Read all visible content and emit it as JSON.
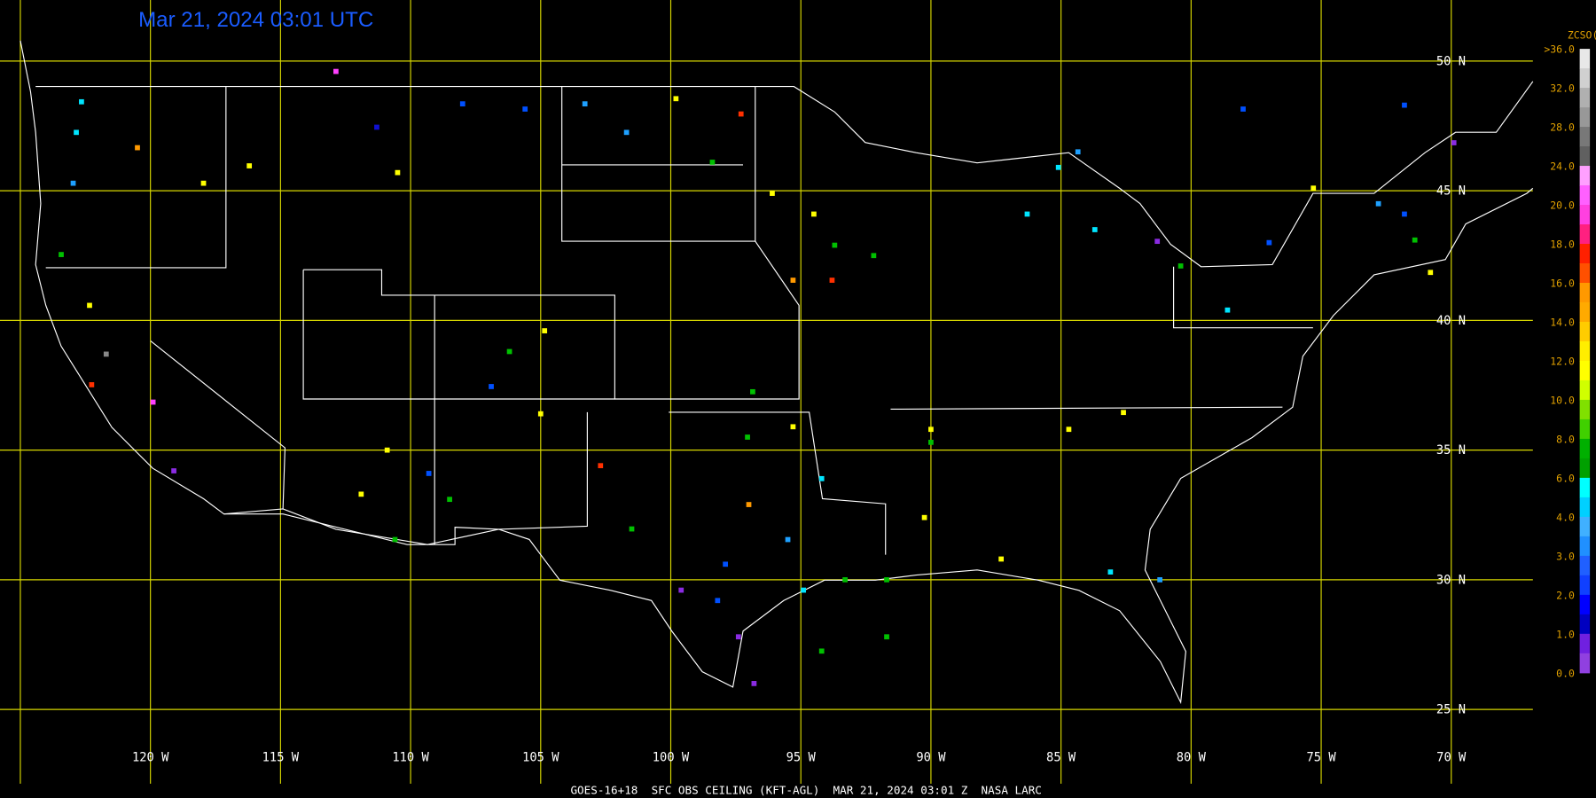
{
  "title": "Mar 21, 2024 03:01 UTC",
  "footer": "GOES-16+18  SFC OBS CEILING (KFT-AGL)  MAR 21, 2024 03:01 Z  NASA LARC",
  "lat_lines": [
    {
      "value": 50,
      "label": "50 N"
    },
    {
      "value": 45,
      "label": "45 N"
    },
    {
      "value": 40,
      "label": "40 N"
    },
    {
      "value": 35,
      "label": "35 N"
    },
    {
      "value": 30,
      "label": "30 N"
    },
    {
      "value": 25,
      "label": "25 N"
    }
  ],
  "lon_lines": [
    {
      "value": -125,
      "label": ""
    },
    {
      "value": -120,
      "label": "120 W"
    },
    {
      "value": -115,
      "label": "115 W"
    },
    {
      "value": -110,
      "label": "110 W"
    },
    {
      "value": -105,
      "label": "105 W"
    },
    {
      "value": -100,
      "label": "100 W"
    },
    {
      "value": -95,
      "label": "95 W"
    },
    {
      "value": -90,
      "label": "90 W"
    },
    {
      "value": -85,
      "label": "85 W"
    },
    {
      "value": -80,
      "label": "80 W"
    },
    {
      "value": -75,
      "label": "75 W"
    },
    {
      "value": -70,
      "label": "70 W"
    }
  ],
  "legend": {
    "title": "ZCSO(Kft)",
    "labels": [
      ">36.0",
      "32.0",
      "28.0",
      "24.0",
      "20.0",
      "18.0",
      "16.0",
      "14.0",
      "12.0",
      "10.0",
      "8.0",
      "6.0",
      "4.0",
      "3.0",
      "2.0",
      "1.0",
      "0.0"
    ],
    "colors": [
      "#e8e8e8",
      "#d0d0d0",
      "#b0b0b0",
      "#989898",
      "#787878",
      "#606060",
      "#ffa0ff",
      "#ff60ff",
      "#ff40e0",
      "#ff2080",
      "#ff2000",
      "#ff5000",
      "#ff9900",
      "#ffaa00",
      "#ffcc00",
      "#ffee00",
      "#ffff00",
      "#d0ff00",
      "#80e000",
      "#40d000",
      "#00b000",
      "#00a000",
      "#00ffff",
      "#00d0ff",
      "#40b0ff",
      "#2090ff",
      "#2060ff",
      "#1040ff",
      "#0000ff",
      "#0000c0",
      "#7020e0",
      "#9040e0"
    ]
  },
  "stations": [
    {
      "lon": -122.65,
      "lat": 48.43,
      "color": "#00e5ff"
    },
    {
      "lon": -122.85,
      "lat": 47.25,
      "color": "#00e5ff"
    },
    {
      "lon": -122.97,
      "lat": 45.29,
      "color": "#1ea0ff"
    },
    {
      "lon": -123.43,
      "lat": 42.54,
      "color": "#00c000"
    },
    {
      "lon": -122.34,
      "lat": 40.58,
      "color": "#ffff00"
    },
    {
      "lon": -122.26,
      "lat": 37.52,
      "color": "#ff3000"
    },
    {
      "lon": -120.5,
      "lat": 46.66,
      "color": "#ff9900"
    },
    {
      "lon": -117.96,
      "lat": 45.29,
      "color": "#ffff00"
    },
    {
      "lon": -116.2,
      "lat": 45.96,
      "color": "#ffff00"
    },
    {
      "lon": -112.87,
      "lat": 49.6,
      "color": "#ff40ff"
    },
    {
      "lon": -111.3,
      "lat": 47.45,
      "color": "#1010d0"
    },
    {
      "lon": -110.5,
      "lat": 45.7,
      "color": "#ffff00"
    },
    {
      "lon": -108.0,
      "lat": 48.35,
      "color": "#0050ff"
    },
    {
      "lon": -105.6,
      "lat": 48.15,
      "color": "#0050ff"
    },
    {
      "lon": -103.3,
      "lat": 48.35,
      "color": "#1ea0ff"
    },
    {
      "lon": -101.7,
      "lat": 47.25,
      "color": "#1ea0ff"
    },
    {
      "lon": -99.8,
      "lat": 48.55,
      "color": "#ffff00"
    },
    {
      "lon": -98.4,
      "lat": 46.1,
      "color": "#00c000"
    },
    {
      "lon": -97.3,
      "lat": 47.96,
      "color": "#ff3000"
    },
    {
      "lon": -96.1,
      "lat": 44.9,
      "color": "#ffff00"
    },
    {
      "lon": -94.5,
      "lat": 44.1,
      "color": "#ffff00"
    },
    {
      "lon": -93.7,
      "lat": 42.9,
      "color": "#00c000"
    },
    {
      "lon": -95.3,
      "lat": 41.55,
      "color": "#ff9900"
    },
    {
      "lon": -93.8,
      "lat": 41.55,
      "color": "#ff3000"
    },
    {
      "lon": -92.2,
      "lat": 42.5,
      "color": "#00c000"
    },
    {
      "lon": -104.85,
      "lat": 39.6,
      "color": "#ffff00"
    },
    {
      "lon": -106.2,
      "lat": 38.8,
      "color": "#00c000"
    },
    {
      "lon": -106.9,
      "lat": 37.45,
      "color": "#0050ff"
    },
    {
      "lon": -110.9,
      "lat": 35.0,
      "color": "#ffff00"
    },
    {
      "lon": -109.3,
      "lat": 34.1,
      "color": "#0050ff"
    },
    {
      "lon": -111.9,
      "lat": 33.3,
      "color": "#ffff00"
    },
    {
      "lon": -110.6,
      "lat": 31.55,
      "color": "#00c000"
    },
    {
      "lon": -119.9,
      "lat": 36.85,
      "color": "#ff40ff"
    },
    {
      "lon": -121.7,
      "lat": 38.7,
      "color": "#888888"
    },
    {
      "lon": -119.1,
      "lat": 34.2,
      "color": "#8a2be2"
    },
    {
      "lon": -102.7,
      "lat": 34.4,
      "color": "#ff3000"
    },
    {
      "lon": -101.5,
      "lat": 31.96,
      "color": "#00c000"
    },
    {
      "lon": -96.85,
      "lat": 37.25,
      "color": "#00c000"
    },
    {
      "lon": -97.05,
      "lat": 35.5,
      "color": "#00c000"
    },
    {
      "lon": -95.3,
      "lat": 35.9,
      "color": "#ffff00"
    },
    {
      "lon": -94.2,
      "lat": 33.9,
      "color": "#00e5ff"
    },
    {
      "lon": -97.0,
      "lat": 32.9,
      "color": "#ff9900"
    },
    {
      "lon": -95.5,
      "lat": 31.55,
      "color": "#1ea0ff"
    },
    {
      "lon": -97.9,
      "lat": 30.6,
      "color": "#0050ff"
    },
    {
      "lon": -94.9,
      "lat": 29.6,
      "color": "#00e5ff"
    },
    {
      "lon": -93.3,
      "lat": 30.0,
      "color": "#00c000"
    },
    {
      "lon": -91.7,
      "lat": 30.0,
      "color": "#00c000"
    },
    {
      "lon": -98.2,
      "lat": 29.2,
      "color": "#0050ff"
    },
    {
      "lon": -97.4,
      "lat": 27.8,
      "color": "#8a2be2"
    },
    {
      "lon": -96.8,
      "lat": 26.0,
      "color": "#8a2be2"
    },
    {
      "lon": -99.6,
      "lat": 29.6,
      "color": "#8a2be2"
    },
    {
      "lon": -94.2,
      "lat": 27.25,
      "color": "#00c000"
    },
    {
      "lon": -91.7,
      "lat": 27.8,
      "color": "#00c000"
    },
    {
      "lon": -90.25,
      "lat": 32.4,
      "color": "#ffff00"
    },
    {
      "lon": -90.0,
      "lat": 35.8,
      "color": "#ffff00"
    },
    {
      "lon": -90.0,
      "lat": 35.3,
      "color": "#00c000"
    },
    {
      "lon": -87.3,
      "lat": 30.8,
      "color": "#ffff00"
    },
    {
      "lon": -84.7,
      "lat": 35.8,
      "color": "#ffff00"
    },
    {
      "lon": -82.6,
      "lat": 36.45,
      "color": "#ffff00"
    },
    {
      "lon": -83.1,
      "lat": 30.3,
      "color": "#00e5ff"
    },
    {
      "lon": -85.1,
      "lat": 45.9,
      "color": "#00e5ff"
    },
    {
      "lon": -84.35,
      "lat": 46.5,
      "color": "#1ea0ff"
    },
    {
      "lon": -86.3,
      "lat": 44.1,
      "color": "#00e5ff"
    },
    {
      "lon": -83.7,
      "lat": 43.5,
      "color": "#00e5ff"
    },
    {
      "lon": -81.3,
      "lat": 43.05,
      "color": "#8a2be2"
    },
    {
      "lon": -80.4,
      "lat": 42.1,
      "color": "#00c000"
    },
    {
      "lon": -77.0,
      "lat": 43.0,
      "color": "#0050ff"
    },
    {
      "lon": -78.6,
      "lat": 40.4,
      "color": "#00e5ff"
    },
    {
      "lon": -75.3,
      "lat": 45.1,
      "color": "#ffff00"
    },
    {
      "lon": -72.8,
      "lat": 44.5,
      "color": "#1ea0ff"
    },
    {
      "lon": -71.4,
      "lat": 43.1,
      "color": "#00c000"
    },
    {
      "lon": -70.8,
      "lat": 41.85,
      "color": "#ffff00"
    },
    {
      "lon": -71.8,
      "lat": 44.1,
      "color": "#0050ff"
    },
    {
      "lon": -69.9,
      "lat": 46.85,
      "color": "#8a2be2"
    },
    {
      "lon": -78.0,
      "lat": 48.15,
      "color": "#0050ff"
    },
    {
      "lon": -71.8,
      "lat": 48.3,
      "color": "#0050ff"
    },
    {
      "lon": -81.2,
      "lat": 30.0,
      "color": "#1ea0ff"
    },
    {
      "lon": -105.0,
      "lat": 36.4,
      "color": "#ffff00"
    },
    {
      "lon": -108.5,
      "lat": 33.1,
      "color": "#00c000"
    }
  ]
}
